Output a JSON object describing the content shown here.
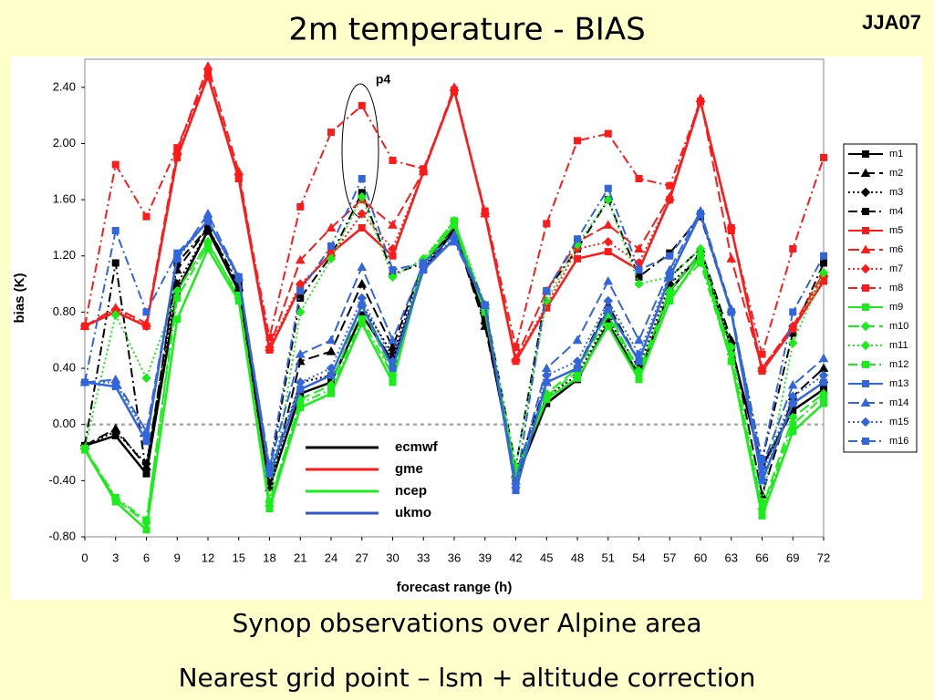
{
  "chart_data": {
    "type": "line",
    "title": "2m temperature - BIAS",
    "x_label": "forecast range (h)",
    "y_label": "bias (K)",
    "annotation": "p4",
    "x": [
      0,
      3,
      6,
      9,
      12,
      15,
      18,
      21,
      24,
      27,
      30,
      33,
      36,
      39,
      42,
      45,
      48,
      51,
      54,
      57,
      60,
      63,
      66,
      69,
      72
    ],
    "xlim": [
      0,
      72
    ],
    "xticks": [
      0,
      3,
      6,
      9,
      12,
      15,
      18,
      21,
      24,
      27,
      30,
      33,
      36,
      39,
      42,
      45,
      48,
      51,
      54,
      57,
      60,
      63,
      66,
      69,
      72
    ],
    "ylim": [
      -0.8,
      2.6
    ],
    "yticks": [
      {
        "value": -0.8,
        "label": "-0.80"
      },
      {
        "value": -0.4,
        "label": "-0.40"
      },
      {
        "value": 0,
        "label": "0.00"
      },
      {
        "value": 0.4,
        "label": "0.40"
      },
      {
        "value": 0.8,
        "label": "0.80"
      },
      {
        "value": 1.2,
        "label": "1.20"
      },
      {
        "value": 1.6,
        "label": "1.60"
      },
      {
        "value": 2.0,
        "label": "2.00"
      },
      {
        "value": 2.4,
        "label": "2.40"
      }
    ],
    "zero_line": true,
    "group_legend": [
      {
        "name": "ecmwf",
        "color": "#000000"
      },
      {
        "name": "gme",
        "color": "#ff1a1a"
      },
      {
        "name": "ncep",
        "color": "#1aee1a"
      },
      {
        "name": "ukmo",
        "color": "#3355cc"
      }
    ],
    "series": [
      {
        "name": "m1",
        "color": "#000000",
        "dash": "solid",
        "marker": "square",
        "values": [
          -0.15,
          -0.08,
          -0.35,
          0.95,
          1.38,
          0.95,
          -0.45,
          0.22,
          0.3,
          0.78,
          0.45,
          1.1,
          1.38,
          0.75,
          -0.4,
          0.15,
          0.32,
          0.72,
          0.35,
          0.95,
          1.22,
          0.55,
          -0.3,
          0.1,
          0.25
        ]
      },
      {
        "name": "m2",
        "color": "#000000",
        "dash": "long-dash",
        "marker": "triangle",
        "values": [
          -0.15,
          -0.03,
          -0.3,
          1.1,
          1.4,
          0.98,
          -0.45,
          0.45,
          0.52,
          1.0,
          0.55,
          1.15,
          1.38,
          0.7,
          -0.35,
          0.3,
          0.4,
          0.85,
          0.45,
          1.05,
          1.25,
          0.6,
          -0.5,
          0.2,
          0.4
        ]
      },
      {
        "name": "m3",
        "color": "#000000",
        "dash": "dot",
        "marker": "diamond",
        "values": [
          -0.15,
          -0.05,
          -0.28,
          1.0,
          1.38,
          0.95,
          -0.42,
          0.3,
          0.35,
          0.85,
          0.5,
          1.12,
          1.38,
          0.72,
          -0.38,
          0.2,
          0.35,
          0.75,
          0.4,
          1.0,
          1.2,
          0.55,
          -0.3,
          0.15,
          0.3
        ]
      },
      {
        "name": "m4",
        "color": "#000000",
        "dash": "dash-dot",
        "marker": "square",
        "values": [
          -0.15,
          1.15,
          -0.35,
          1.15,
          1.4,
          1.0,
          -0.35,
          0.9,
          1.2,
          1.65,
          1.07,
          1.15,
          1.4,
          0.85,
          -0.3,
          0.95,
          1.25,
          1.6,
          1.05,
          1.22,
          1.48,
          0.8,
          -0.25,
          0.65,
          1.15
        ]
      },
      {
        "name": "m5",
        "color": "#ff1a1a",
        "dash": "solid",
        "marker": "square",
        "values": [
          0.7,
          0.8,
          0.7,
          1.9,
          2.48,
          1.75,
          0.53,
          0.98,
          1.22,
          1.4,
          1.2,
          1.8,
          2.38,
          1.5,
          0.45,
          0.83,
          1.18,
          1.23,
          1.1,
          1.6,
          2.3,
          1.4,
          0.38,
          0.68,
          1.02
        ]
      },
      {
        "name": "m6",
        "color": "#ff1a1a",
        "dash": "long-dash",
        "marker": "triangle",
        "values": [
          0.7,
          0.83,
          0.72,
          1.95,
          2.55,
          1.8,
          0.55,
          1.17,
          1.4,
          1.6,
          1.42,
          1.8,
          2.4,
          1.5,
          0.47,
          0.95,
          1.3,
          1.42,
          1.25,
          1.62,
          2.32,
          1.18,
          0.4,
          0.7,
          1.08
        ]
      },
      {
        "name": "m7",
        "color": "#ff1a1a",
        "dash": "dot",
        "marker": "diamond",
        "values": [
          0.7,
          0.82,
          0.7,
          1.92,
          2.48,
          1.78,
          0.55,
          1.0,
          1.2,
          1.5,
          1.25,
          1.8,
          2.38,
          1.5,
          0.46,
          0.85,
          1.25,
          1.3,
          1.15,
          1.6,
          2.3,
          1.4,
          0.4,
          0.7,
          1.05
        ]
      },
      {
        "name": "m8",
        "color": "#ff1a1a",
        "dash": "dash-dot",
        "marker": "square",
        "values": [
          0.7,
          1.85,
          1.48,
          1.97,
          2.5,
          1.75,
          0.62,
          1.55,
          2.08,
          2.27,
          1.88,
          1.82,
          2.37,
          1.52,
          0.55,
          1.43,
          2.02,
          2.07,
          1.75,
          1.7,
          2.3,
          1.38,
          0.5,
          1.25,
          1.9
        ]
      },
      {
        "name": "m9",
        "color": "#1aee1a",
        "dash": "solid",
        "marker": "square",
        "values": [
          -0.18,
          -0.55,
          -0.75,
          0.75,
          1.25,
          0.88,
          -0.6,
          0.12,
          0.22,
          0.72,
          0.3,
          1.15,
          1.42,
          0.8,
          -0.35,
          0.18,
          0.33,
          0.7,
          0.32,
          0.88,
          1.2,
          0.45,
          -0.65,
          -0.05,
          0.15
        ]
      },
      {
        "name": "m10",
        "color": "#1aee1a",
        "dash": "long-dash",
        "marker": "diamond",
        "values": [
          -0.17,
          -0.53,
          -0.7,
          0.95,
          1.3,
          0.9,
          -0.58,
          0.18,
          0.28,
          0.85,
          0.35,
          1.17,
          1.45,
          0.82,
          -0.38,
          0.22,
          0.4,
          0.8,
          0.38,
          0.95,
          1.22,
          0.5,
          -0.6,
          0.05,
          0.22
        ]
      },
      {
        "name": "m11",
        "color": "#1aee1a",
        "dash": "dot",
        "marker": "diamond",
        "values": [
          -0.17,
          0.78,
          0.33,
          0.95,
          1.3,
          0.9,
          -0.55,
          0.8,
          1.18,
          1.62,
          1.05,
          1.18,
          1.45,
          0.85,
          -0.3,
          0.88,
          1.28,
          1.6,
          1.0,
          1.05,
          1.25,
          0.55,
          -0.55,
          0.58,
          1.08
        ]
      },
      {
        "name": "m12",
        "color": "#1aee1a",
        "dash": "dash-dot",
        "marker": "square",
        "values": [
          -0.17,
          -0.52,
          -0.68,
          0.9,
          1.28,
          0.92,
          -0.55,
          0.15,
          0.25,
          0.75,
          0.35,
          1.15,
          1.45,
          0.8,
          -0.35,
          0.2,
          0.38,
          0.78,
          0.35,
          0.92,
          1.15,
          0.45,
          -0.62,
          0.0,
          0.2
        ]
      },
      {
        "name": "m13",
        "color": "#3366dd",
        "dash": "solid",
        "marker": "square",
        "values": [
          0.3,
          0.27,
          -0.12,
          1.2,
          1.45,
          1.05,
          -0.35,
          0.25,
          0.35,
          0.85,
          0.4,
          1.1,
          1.32,
          0.85,
          -0.47,
          0.3,
          0.4,
          0.82,
          0.45,
          1.05,
          1.5,
          0.8,
          -0.4,
          0.15,
          0.3
        ]
      },
      {
        "name": "m14",
        "color": "#3366dd",
        "dash": "long-dash",
        "marker": "triangle",
        "values": [
          0.3,
          0.32,
          -0.05,
          1.18,
          1.5,
          1.05,
          -0.3,
          0.5,
          0.6,
          1.12,
          0.6,
          1.15,
          1.35,
          0.85,
          -0.4,
          0.4,
          0.6,
          1.02,
          0.6,
          1.1,
          1.52,
          0.82,
          -0.3,
          0.28,
          0.47
        ]
      },
      {
        "name": "m15",
        "color": "#3366dd",
        "dash": "dot",
        "marker": "diamond",
        "values": [
          0.3,
          0.3,
          -0.08,
          1.18,
          1.45,
          1.03,
          -0.33,
          0.3,
          0.4,
          0.9,
          0.45,
          1.12,
          1.33,
          0.85,
          -0.45,
          0.35,
          0.45,
          0.88,
          0.5,
          1.07,
          1.5,
          0.8,
          -0.35,
          0.2,
          0.35
        ]
      },
      {
        "name": "m16",
        "color": "#3366dd",
        "dash": "dash-dot",
        "marker": "square",
        "values": [
          0.3,
          1.38,
          0.8,
          1.22,
          1.45,
          1.05,
          -0.3,
          0.95,
          1.27,
          1.75,
          1.1,
          1.15,
          1.3,
          0.85,
          -0.45,
          0.95,
          1.32,
          1.68,
          1.1,
          1.2,
          1.5,
          0.8,
          -0.25,
          0.8,
          1.2
        ]
      }
    ]
  },
  "header": {
    "tag": "JJA07"
  },
  "footer": {
    "lines": [
      "Synop observations over Alpine area",
      "Nearest grid point – lsm + altitude correction"
    ]
  }
}
